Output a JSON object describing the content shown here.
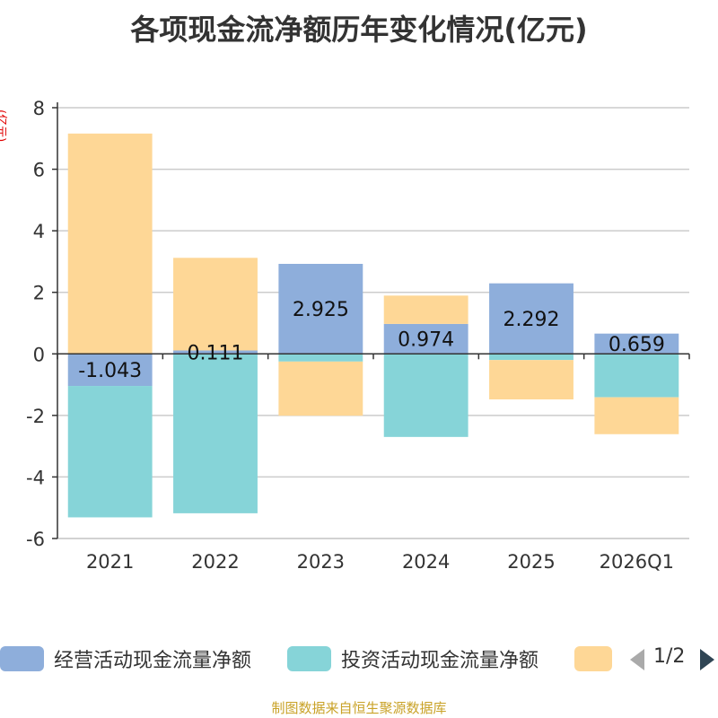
{
  "chart_data": {
    "type": "bar",
    "stacked": true,
    "title": "各项现金流净额历年变化情况(亿元)",
    "ylabel": "(亿元)",
    "xlabel": "",
    "categories": [
      "2021",
      "2022",
      "2023",
      "2024",
      "2025",
      "2026Q1"
    ],
    "ylim": [
      -6,
      8
    ],
    "yticks": [
      -6,
      -4,
      -2,
      0,
      2,
      4,
      6,
      8
    ],
    "grid": true,
    "legend_position": "bottom",
    "series": [
      {
        "name": "经营活动现金流量净额",
        "color": "#8eaedb",
        "values": [
          -1.043,
          0.111,
          2.925,
          0.974,
          2.292,
          0.659
        ],
        "labels": [
          "-1.043",
          "0.111",
          "2.925",
          "0.974",
          "2.292",
          "0.659"
        ]
      },
      {
        "name": "投资活动现金流量净额",
        "color": "#86d4d8",
        "values": [
          -4.27,
          -5.18,
          -0.25,
          -2.7,
          -0.2,
          -1.41
        ]
      },
      {
        "name": "",
        "color": "#fed796",
        "values": [
          7.16,
          3.01,
          -1.76,
          0.92,
          -1.28,
          -1.2
        ]
      }
    ]
  },
  "legend": {
    "page": "1/2",
    "prev_color": "#aaaaaa",
    "next_color": "#2f4554"
  },
  "footer": "制图数据来自恒生聚源数据库"
}
